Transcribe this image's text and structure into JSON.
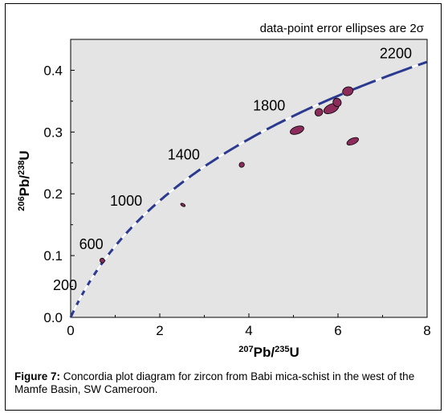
{
  "chart_data": {
    "type": "scatter",
    "annotation": "data-point error ellipses are 2σ",
    "ylabel": {
      "sup1": "206",
      "base1": "Pb/",
      "sup2": "238",
      "base2": "U"
    },
    "xlabel": {
      "sup1": "207",
      "base1": "Pb/",
      "sup2": "235",
      "base2": "U"
    },
    "xlim": [
      0,
      8
    ],
    "ylim": [
      0,
      0.45
    ],
    "x_ticks": [
      "0",
      "2",
      "4",
      "6",
      "8"
    ],
    "y_ticks": [
      "0.0",
      "0.1",
      "0.2",
      "0.3",
      "0.4"
    ],
    "concordia_ages_ma": [
      "200",
      "600",
      "1000",
      "1400",
      "1800",
      "2200"
    ],
    "curve_color": "#2b3990",
    "ellipse_color": "#8b2c5a",
    "plot_background": "#e4e4e4",
    "ellipses": [
      {
        "x": 0.71,
        "y": 0.092,
        "rx": 0.05,
        "ry": 0.004,
        "rot": -40
      },
      {
        "x": 2.52,
        "y": 0.182,
        "rx": 0.03,
        "ry": 0.004,
        "rot": -60
      },
      {
        "x": 3.84,
        "y": 0.247,
        "rx": 0.06,
        "ry": 0.004,
        "rot": -40
      },
      {
        "x": 5.08,
        "y": 0.303,
        "rx": 0.16,
        "ry": 0.006,
        "rot": -20
      },
      {
        "x": 5.57,
        "y": 0.332,
        "rx": 0.09,
        "ry": 0.006,
        "rot": -40
      },
      {
        "x": 5.85,
        "y": 0.338,
        "rx": 0.18,
        "ry": 0.007,
        "rot": -25
      },
      {
        "x": 5.98,
        "y": 0.348,
        "rx": 0.09,
        "ry": 0.007,
        "rot": -40
      },
      {
        "x": 6.22,
        "y": 0.366,
        "rx": 0.12,
        "ry": 0.007,
        "rot": -20
      },
      {
        "x": 6.33,
        "y": 0.285,
        "rx": 0.14,
        "ry": 0.005,
        "rot": -25
      }
    ]
  },
  "caption": {
    "label": "Figure 7:",
    "text": " Concordia plot diagram for zircon from Babi mica-schist in the west of the Mamfe Basin, SW Cameroon."
  }
}
